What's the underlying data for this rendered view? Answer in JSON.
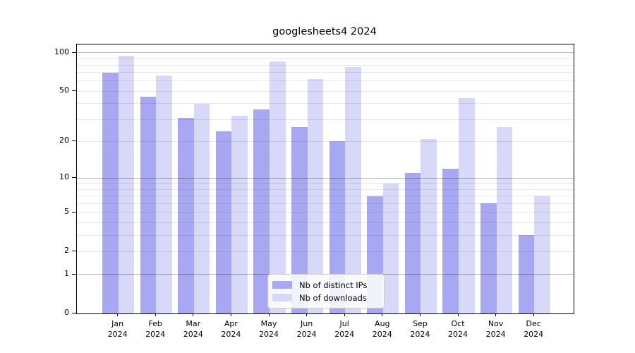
{
  "chart_data": {
    "type": "bar",
    "title": "googlesheets4 2024",
    "scale": "log1p-symlog",
    "categories": [
      "Jan",
      "Feb",
      "Mar",
      "Apr",
      "May",
      "Jun",
      "Jul",
      "Aug",
      "Sep",
      "Oct",
      "Nov",
      "Dec"
    ],
    "year_label": "2024",
    "series": [
      {
        "name": "Nb of distinct IPs",
        "color": "#a8a8f2",
        "values": [
          70,
          45,
          31,
          24,
          36,
          26,
          20,
          7,
          11,
          12,
          6,
          3
        ]
      },
      {
        "name": "Nb of downloads",
        "color": "#d8d8f8",
        "values": [
          95,
          66,
          40,
          32,
          85,
          62,
          77,
          9,
          21,
          44,
          26,
          7
        ]
      }
    ],
    "yticks": [
      0,
      1,
      2,
      5,
      10,
      20,
      50,
      100
    ],
    "ylim": [
      0,
      116
    ],
    "grid": {
      "decade_values": [
        1,
        10,
        100
      ],
      "minor_values": [
        2,
        3,
        4,
        5,
        6,
        7,
        8,
        9,
        20,
        30,
        40,
        50,
        60,
        70,
        80,
        90
      ],
      "decade_color": "#b4b4b4",
      "minor_color": "#e8e8e8"
    },
    "legend_position": "lower center",
    "xlabel": "",
    "ylabel": ""
  }
}
